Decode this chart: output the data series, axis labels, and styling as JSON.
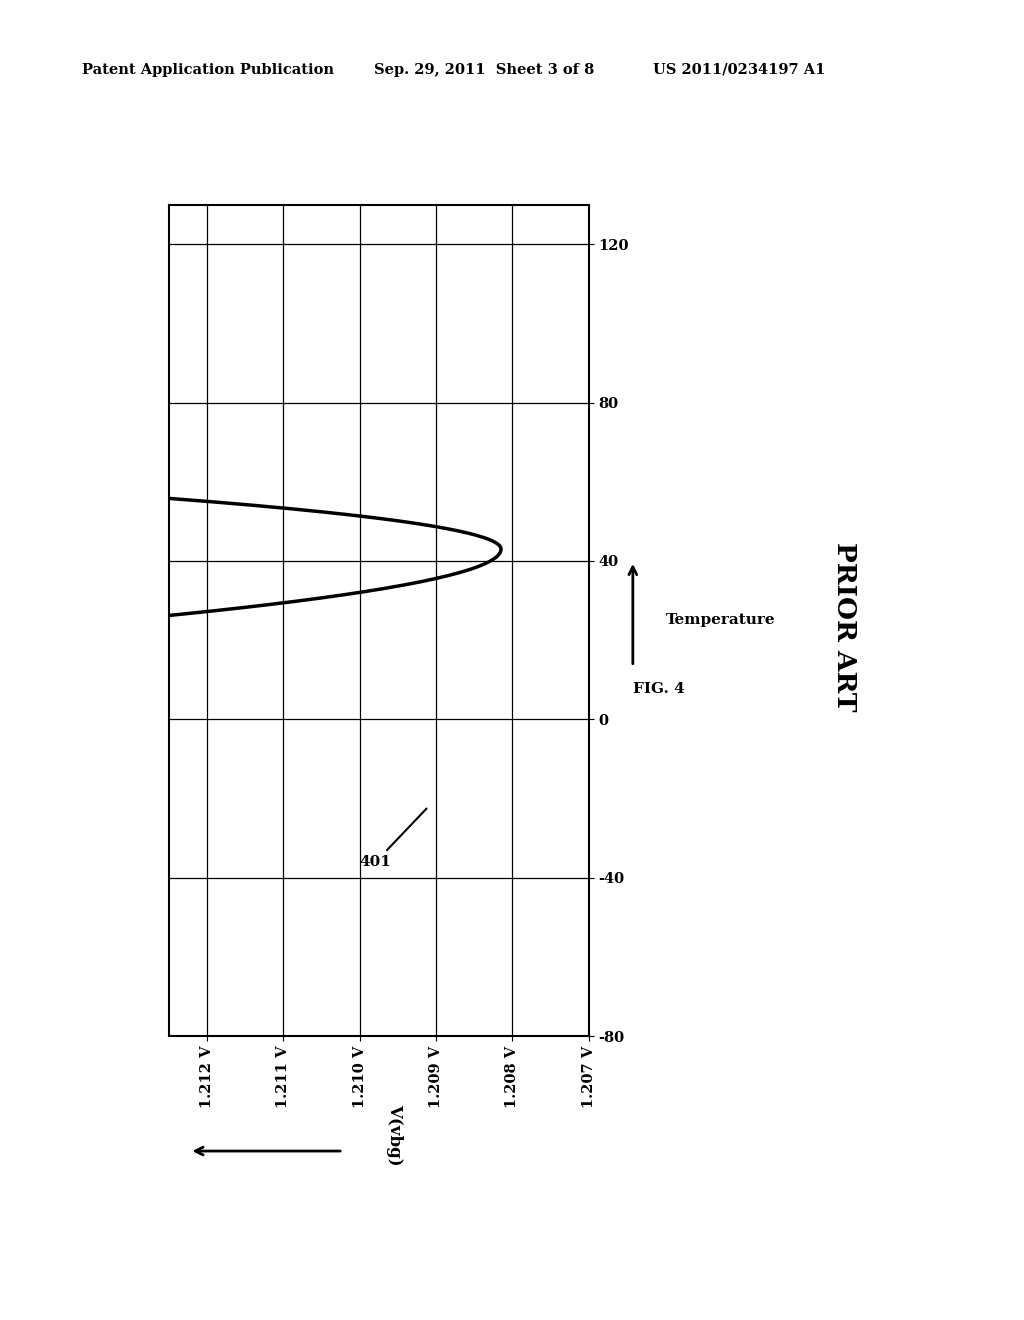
{
  "patent_header_left": "Patent Application Publication",
  "patent_header_mid": "Sep. 29, 2011  Sheet 3 of 8",
  "patent_header_right": "US 2011/0234197 A1",
  "fig_label": "FIG. 4",
  "fig_sublabel": "PRIOR ART",
  "curve_label": "401",
  "xlabel": "V(vbg)",
  "ylabel": "Temperature",
  "x_ticks": [
    1.207,
    1.208,
    1.209,
    1.21,
    1.211,
    1.212
  ],
  "x_tick_labels": [
    "1.207 V",
    "1.208 V",
    "1.209 V",
    "1.210 V",
    "1.211 V",
    "1.212 V"
  ],
  "y_ticks": [
    -80,
    -40,
    0,
    40,
    80,
    120
  ],
  "y_tick_labels": [
    "-80",
    "-40",
    "0",
    "40",
    "80",
    "120"
  ],
  "xlim_min": 1.207,
  "xlim_max": 1.2125,
  "ylim_min": -80,
  "ylim_max": 130,
  "background_color": "#ffffff",
  "curve_color": "#000000",
  "grid_color": "#000000",
  "text_color": "#000000",
  "line_width": 2.5,
  "Tmin": 43,
  "Vmin": 1.20815,
  "a_low": 1.55e-05,
  "a_high": 2.65e-05
}
